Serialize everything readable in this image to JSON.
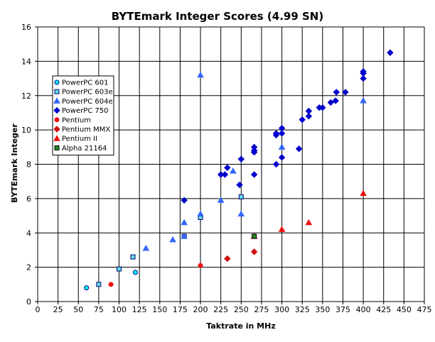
{
  "chart_data": {
    "type": "scatter",
    "title": "BYTEmark Integer Scores (4.99 SN)",
    "xlabel": "Taktrate in MHz",
    "ylabel": "BYTEmark Integer",
    "xlim": [
      0,
      475
    ],
    "ylim": [
      0,
      16
    ],
    "x_ticks": [
      0,
      25,
      50,
      75,
      100,
      125,
      150,
      175,
      200,
      225,
      250,
      275,
      300,
      325,
      350,
      375,
      400,
      425,
      450,
      475
    ],
    "y_ticks": [
      0,
      2,
      4,
      6,
      8,
      10,
      12,
      14,
      16
    ],
    "grid": true,
    "legend_position": "left",
    "series": [
      {
        "name": "PowerPC 601",
        "marker": "circle",
        "color": "#00ffff",
        "stroke": "#000080",
        "points": [
          [
            60,
            0.8
          ],
          [
            120,
            1.7
          ]
        ]
      },
      {
        "name": "PowerPC 603e",
        "marker": "square",
        "color": "#66dddd",
        "stroke": "#000080",
        "points": [
          [
            75,
            1.0
          ],
          [
            100,
            1.9
          ],
          [
            117,
            2.6
          ],
          [
            180,
            3.8
          ],
          [
            200,
            4.9
          ],
          [
            250,
            6.1
          ]
        ]
      },
      {
        "name": "PowerPC 604e",
        "marker": "triangle",
        "color": "#3366ff",
        "stroke": "#3366ff",
        "points": [
          [
            133,
            3.1
          ],
          [
            166,
            3.6
          ],
          [
            180,
            3.8
          ],
          [
            180,
            4.6
          ],
          [
            200,
            5.1
          ],
          [
            200,
            13.2
          ],
          [
            225,
            5.9
          ],
          [
            240,
            7.6
          ],
          [
            250,
            5.1
          ],
          [
            300,
            9.0
          ],
          [
            400,
            11.7
          ]
        ]
      },
      {
        "name": "PowerPC 750",
        "marker": "diamond",
        "color": "#0000cc",
        "stroke": "#0000cc",
        "points": [
          [
            180,
            5.9
          ],
          [
            225,
            7.4
          ],
          [
            230,
            7.4
          ],
          [
            233,
            7.8
          ],
          [
            248,
            6.8
          ],
          [
            250,
            8.3
          ],
          [
            266,
            7.4
          ],
          [
            266,
            8.7
          ],
          [
            266,
            8.8
          ],
          [
            266,
            9.0
          ],
          [
            293,
            8.0
          ],
          [
            293,
            9.7
          ],
          [
            293,
            9.8
          ],
          [
            300,
            8.4
          ],
          [
            300,
            9.8
          ],
          [
            300,
            10.1
          ],
          [
            321,
            8.9
          ],
          [
            325,
            10.6
          ],
          [
            333,
            10.8
          ],
          [
            333,
            11.1
          ],
          [
            346,
            11.3
          ],
          [
            350,
            11.3
          ],
          [
            360,
            11.6
          ],
          [
            366,
            11.7
          ],
          [
            367,
            12.2
          ],
          [
            378,
            12.2
          ],
          [
            400,
            13.0
          ],
          [
            400,
            13.3
          ],
          [
            400,
            13.4
          ],
          [
            433,
            14.5
          ]
        ]
      },
      {
        "name": "Pentium",
        "marker": "circle",
        "color": "#ee1111",
        "stroke": "#ee1111",
        "points": [
          [
            90,
            1.0
          ],
          [
            200,
            2.1
          ]
        ]
      },
      {
        "name": "Pentium MMX",
        "marker": "diamond",
        "color": "#cc1111",
        "stroke": "#cc1111",
        "points": [
          [
            233,
            2.5
          ],
          [
            266,
            2.9
          ]
        ]
      },
      {
        "name": "Pentium II",
        "marker": "triangle",
        "color": "#ee1111",
        "stroke": "#ee1111",
        "points": [
          [
            266,
            3.8
          ],
          [
            300,
            4.2
          ],
          [
            333,
            4.6
          ],
          [
            400,
            6.3
          ]
        ]
      },
      {
        "name": "Alpha 21164",
        "marker": "square",
        "color": "#228822",
        "stroke": "#000000",
        "points": [
          [
            266,
            3.8
          ]
        ]
      }
    ]
  }
}
